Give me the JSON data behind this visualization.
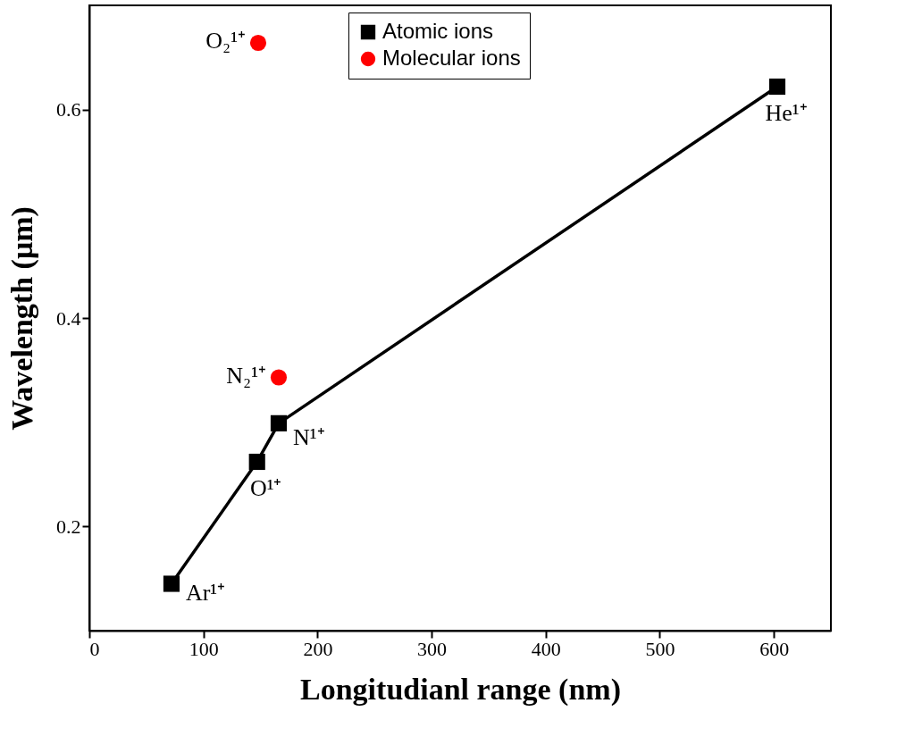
{
  "chart_data": {
    "type": "line",
    "xlabel": "Longitudianl range (nm)",
    "ylabel": "Wavelength (μm)",
    "xlim": [
      0,
      650
    ],
    "xticks": [
      0,
      100,
      200,
      300,
      400,
      500,
      600
    ],
    "ylim": [
      0.1,
      0.7
    ],
    "yticks": [
      0.2,
      0.4,
      0.6
    ],
    "grid": false,
    "legend": "top",
    "line_style": "solid",
    "series": [
      {
        "name": "Atomic ions",
        "marker": "square",
        "color": "#000000",
        "x": [
          72,
          147,
          166,
          603
        ],
        "values": [
          0.145,
          0.262,
          0.299,
          0.622
        ]
      },
      {
        "name": "Molecular ions",
        "type": "scatter",
        "marker": "circle",
        "color": "#ff0000",
        "x": [
          148,
          166
        ],
        "values": [
          0.664,
          0.343
        ]
      }
    ],
    "annotations": [
      {
        "text": "Ar¹⁺",
        "x": 72,
        "y": 0.145
      },
      {
        "text": "O¹⁺",
        "x": 147,
        "y": 0.262
      },
      {
        "text": "N¹⁺",
        "x": 166,
        "y": 0.299
      },
      {
        "text": "He¹⁺",
        "x": 603,
        "y": 0.622
      },
      {
        "text": "O₂¹⁺",
        "x": 148,
        "y": 0.664
      },
      {
        "text": "N₂¹⁺",
        "x": 166,
        "y": 0.343
      }
    ]
  }
}
